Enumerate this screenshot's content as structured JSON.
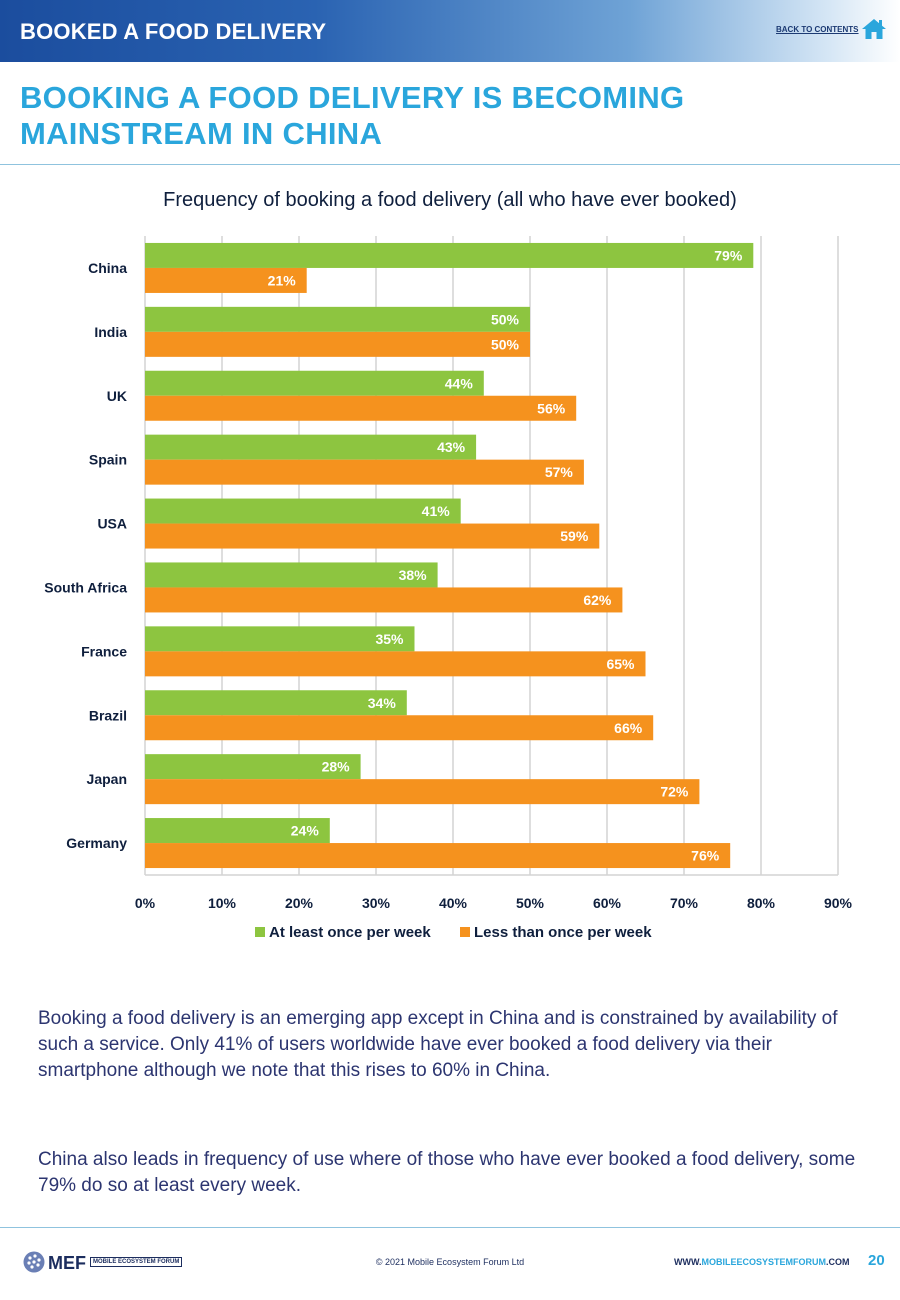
{
  "header": {
    "title": "BOOKED A FOOD DELIVERY",
    "back_link": "BACK TO CONTENTS"
  },
  "page_title": "BOOKING A FOOD DELIVERY IS BECOMING MAINSTREAM IN CHINA",
  "chart_data": {
    "type": "bar",
    "orientation": "horizontal",
    "title": "Frequency of booking a food delivery (all who have ever booked)",
    "categories": [
      "China",
      "India",
      "UK",
      "Spain",
      "USA",
      "South Africa",
      "France",
      "Brazil",
      "Japan",
      "Germany"
    ],
    "series": [
      {
        "name": "At least once per week",
        "color": "#8dc540",
        "values": [
          79,
          50,
          44,
          43,
          41,
          38,
          35,
          34,
          28,
          24
        ]
      },
      {
        "name": "Less than once per week",
        "color": "#f5921e",
        "values": [
          21,
          50,
          56,
          57,
          59,
          62,
          65,
          66,
          72,
          76
        ]
      }
    ],
    "xlim": [
      0,
      90
    ],
    "xticks": [
      0,
      10,
      20,
      30,
      40,
      50,
      60,
      70,
      80,
      90
    ],
    "tick_format": "{v}%",
    "grid": true,
    "legend_position": "bottom"
  },
  "body": {
    "paragraph1": "Booking a food delivery is an emerging app except in China and is constrained by availability of such a service. Only 41% of users worldwide have ever booked a food delivery via their smartphone although we note that this rises to 60% in China.",
    "paragraph2": "China also leads in frequency of use where of those who have ever booked a food delivery, some 79% do so at least every week."
  },
  "footer": {
    "logo_text": "MEF",
    "logo_subtitle": "MOBILE ECOSYSTEM FORUM",
    "copyright": "© 2021 Mobile Ecosystem Forum Ltd",
    "url_prefix": "WWW.",
    "url_highlight": "MOBILEECOSYSTEMFORUM",
    "url_suffix": ".COM",
    "page_number": "20"
  }
}
